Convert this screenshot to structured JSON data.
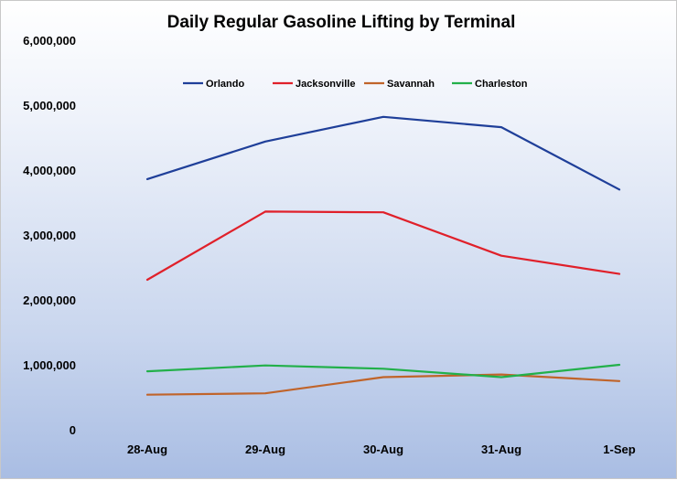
{
  "chart_data": {
    "type": "line",
    "title": "Daily Regular Gasoline Lifting by Terminal",
    "xlabel": "",
    "ylabel": "",
    "categories": [
      "28-Aug",
      "29-Aug",
      "30-Aug",
      "31-Aug",
      "1-Sep"
    ],
    "ylim": [
      0,
      6000000
    ],
    "yticks": [
      0,
      1000000,
      2000000,
      3000000,
      4000000,
      5000000,
      6000000
    ],
    "ytick_labels": [
      "0",
      "1,000,000",
      "2,000,000",
      "3,000,000",
      "4,000,000",
      "5,000,000",
      "6,000,000"
    ],
    "grid": false,
    "legend_position": "top",
    "series": [
      {
        "name": "Orlando",
        "color": "#1f3f99",
        "values": [
          3860000,
          4440000,
          4820000,
          4660000,
          3700000
        ]
      },
      {
        "name": "Jacksonville",
        "color": "#e0202a",
        "values": [
          2310000,
          3360000,
          3350000,
          2680000,
          2400000
        ]
      },
      {
        "name": "Savannah",
        "color": "#c0642a",
        "values": [
          540000,
          560000,
          810000,
          850000,
          750000
        ]
      },
      {
        "name": "Charleston",
        "color": "#22b04a",
        "values": [
          900000,
          990000,
          940000,
          810000,
          1000000
        ]
      }
    ]
  }
}
